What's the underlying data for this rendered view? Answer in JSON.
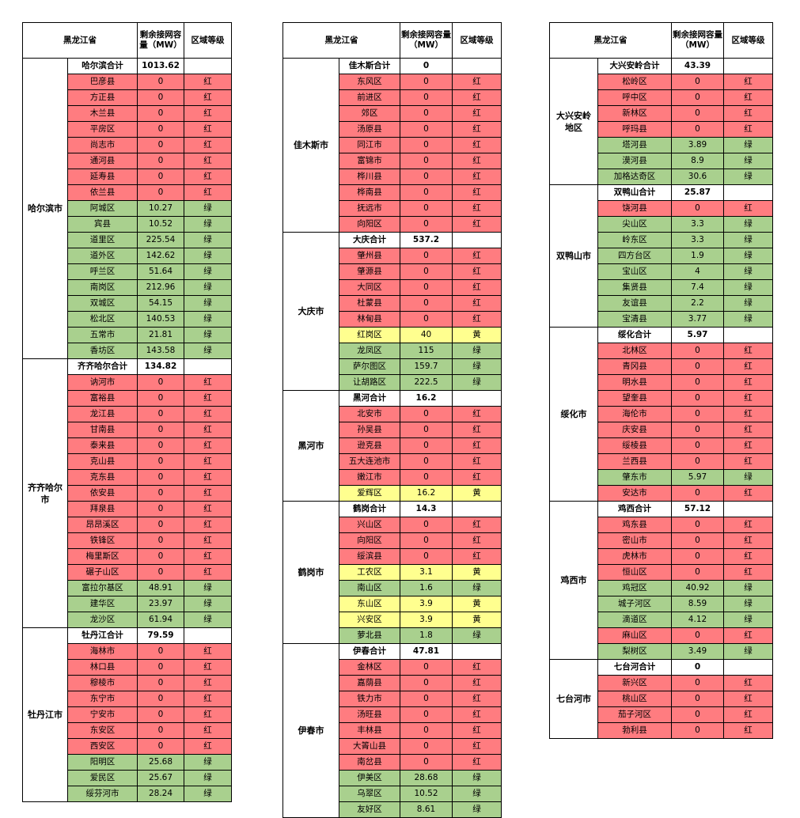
{
  "colors": {
    "red": "#ff7c80",
    "green": "#a9d08e",
    "yellow": "#ffff8f"
  },
  "panels": [
    {
      "header": {
        "province": "黑龙江省",
        "capacity": "剩余接网容量（MW）",
        "grade": "区域等级"
      },
      "groups": [
        {
          "city": "哈尔滨市",
          "total_name": "哈尔滨合计",
          "total_value": "1013.62",
          "rows": [
            [
              "巴彦县",
              "0",
              "红"
            ],
            [
              "方正县",
              "0",
              "红"
            ],
            [
              "木兰县",
              "0",
              "红"
            ],
            [
              "平房区",
              "0",
              "红"
            ],
            [
              "尚志市",
              "0",
              "红"
            ],
            [
              "通河县",
              "0",
              "红"
            ],
            [
              "延寿县",
              "0",
              "红"
            ],
            [
              "依兰县",
              "0",
              "红"
            ],
            [
              "阿城区",
              "10.27",
              "绿"
            ],
            [
              "宾县",
              "10.52",
              "绿"
            ],
            [
              "道里区",
              "225.54",
              "绿"
            ],
            [
              "道外区",
              "142.62",
              "绿"
            ],
            [
              "呼兰区",
              "51.64",
              "绿"
            ],
            [
              "南岗区",
              "212.96",
              "绿"
            ],
            [
              "双城区",
              "54.15",
              "绿"
            ],
            [
              "松北区",
              "140.53",
              "绿"
            ],
            [
              "五常市",
              "21.81",
              "绿"
            ],
            [
              "香坊区",
              "143.58",
              "绿"
            ]
          ]
        },
        {
          "city": "齐齐哈尔市",
          "total_name": "齐齐哈尔合计",
          "total_value": "134.82",
          "rows": [
            [
              "讷河市",
              "0",
              "红"
            ],
            [
              "富裕县",
              "0",
              "红"
            ],
            [
              "龙江县",
              "0",
              "红"
            ],
            [
              "甘南县",
              "0",
              "红"
            ],
            [
              "泰来县",
              "0",
              "红"
            ],
            [
              "克山县",
              "0",
              "红"
            ],
            [
              "克东县",
              "0",
              "红"
            ],
            [
              "依安县",
              "0",
              "红"
            ],
            [
              "拜泉县",
              "0",
              "红"
            ],
            [
              "昂昂溪区",
              "0",
              "红"
            ],
            [
              "铁锋区",
              "0",
              "红"
            ],
            [
              "梅里斯区",
              "0",
              "红"
            ],
            [
              "碾子山区",
              "0",
              "红"
            ],
            [
              "富拉尔基区",
              "48.91",
              "绿"
            ],
            [
              "建华区",
              "23.97",
              "绿"
            ],
            [
              "龙沙区",
              "61.94",
              "绿"
            ]
          ]
        },
        {
          "city": "牡丹江市",
          "total_name": "牡丹江合计",
          "total_value": "79.59",
          "rows": [
            [
              "海林市",
              "0",
              "红"
            ],
            [
              "林口县",
              "0",
              "红"
            ],
            [
              "穆棱市",
              "0",
              "红"
            ],
            [
              "东宁市",
              "0",
              "红"
            ],
            [
              "宁安市",
              "0",
              "红"
            ],
            [
              "东安区",
              "0",
              "红"
            ],
            [
              "西安区",
              "0",
              "红"
            ],
            [
              "阳明区",
              "25.68",
              "绿"
            ],
            [
              "爱民区",
              "25.67",
              "绿"
            ],
            [
              "绥芬河市",
              "28.24",
              "绿"
            ]
          ]
        }
      ]
    },
    {
      "header": {
        "province": "黑龙江省",
        "capacity": "剩余接网容量（MW）",
        "grade": "区域等级"
      },
      "groups": [
        {
          "city": "佳木斯市",
          "total_name": "佳木斯合计",
          "total_value": "0",
          "rows": [
            [
              "东风区",
              "0",
              "红"
            ],
            [
              "前进区",
              "0",
              "红"
            ],
            [
              "郊区",
              "0",
              "红"
            ],
            [
              "汤原县",
              "0",
              "红"
            ],
            [
              "同江市",
              "0",
              "红"
            ],
            [
              "富锦市",
              "0",
              "红"
            ],
            [
              "桦川县",
              "0",
              "红"
            ],
            [
              "桦南县",
              "0",
              "红"
            ],
            [
              "抚远市",
              "0",
              "红"
            ],
            [
              "向阳区",
              "0",
              "红"
            ]
          ]
        },
        {
          "city": "大庆市",
          "total_name": "大庆合计",
          "total_value": "537.2",
          "rows": [
            [
              "肇州县",
              "0",
              "红"
            ],
            [
              "肇源县",
              "0",
              "红"
            ],
            [
              "大同区",
              "0",
              "红"
            ],
            [
              "杜蒙县",
              "0",
              "红"
            ],
            [
              "林甸县",
              "0",
              "红"
            ],
            [
              "红岗区",
              "40",
              "黄"
            ],
            [
              "龙凤区",
              "115",
              "绿"
            ],
            [
              "萨尔图区",
              "159.7",
              "绿"
            ],
            [
              "让胡路区",
              "222.5",
              "绿"
            ]
          ]
        },
        {
          "city": "黑河市",
          "total_name": "黑河合计",
          "total_value": "16.2",
          "rows": [
            [
              "北安市",
              "0",
              "红"
            ],
            [
              "孙吴县",
              "0",
              "红"
            ],
            [
              "逊克县",
              "0",
              "红"
            ],
            [
              "五大连池市",
              "0",
              "红"
            ],
            [
              "嫩江市",
              "0",
              "红"
            ],
            [
              "爱辉区",
              "16.2",
              "黄"
            ]
          ]
        },
        {
          "city": "鹤岗市",
          "total_name": "鹤岗合计",
          "total_value": "14.3",
          "rows": [
            [
              "兴山区",
              "0",
              "红"
            ],
            [
              "向阳区",
              "0",
              "红"
            ],
            [
              "绥滨县",
              "0",
              "红"
            ],
            [
              "工农区",
              "3.1",
              "黄"
            ],
            [
              "南山区",
              "1.6",
              "绿"
            ],
            [
              "东山区",
              "3.9",
              "黄"
            ],
            [
              "兴安区",
              "3.9",
              "黄"
            ],
            [
              "萝北县",
              "1.8",
              "绿"
            ]
          ]
        },
        {
          "city": "伊春市",
          "total_name": "伊春合计",
          "total_value": "47.81",
          "rows": [
            [
              "金林区",
              "0",
              "红"
            ],
            [
              "嘉荫县",
              "0",
              "红"
            ],
            [
              "铁力市",
              "0",
              "红"
            ],
            [
              "汤旺县",
              "0",
              "红"
            ],
            [
              "丰林县",
              "0",
              "红"
            ],
            [
              "大箐山县",
              "0",
              "红"
            ],
            [
              "南岔县",
              "0",
              "红"
            ],
            [
              "伊美区",
              "28.68",
              "绿"
            ],
            [
              "乌翠区",
              "10.52",
              "绿"
            ],
            [
              "友好区",
              "8.61",
              "绿"
            ]
          ]
        }
      ]
    },
    {
      "header": {
        "province": "黑龙江省",
        "capacity": "剩余接网容量（MW）",
        "grade": "区域等级"
      },
      "groups": [
        {
          "city": "大兴安岭地区",
          "total_name": "大兴安岭合计",
          "total_value": "43.39",
          "rows": [
            [
              "松岭区",
              "0",
              "红"
            ],
            [
              "呼中区",
              "0",
              "红"
            ],
            [
              "新林区",
              "0",
              "红"
            ],
            [
              "呼玛县",
              "0",
              "红"
            ],
            [
              "塔河县",
              "3.89",
              "绿"
            ],
            [
              "漠河县",
              "8.9",
              "绿"
            ],
            [
              "加格达奇区",
              "30.6",
              "绿"
            ]
          ]
        },
        {
          "city": "双鸭山市",
          "total_name": "双鸭山合计",
          "total_value": "25.87",
          "rows": [
            [
              "饶河县",
              "0",
              "红"
            ],
            [
              "尖山区",
              "3.3",
              "绿"
            ],
            [
              "岭东区",
              "3.3",
              "绿"
            ],
            [
              "四方台区",
              "1.9",
              "绿"
            ],
            [
              "宝山区",
              "4",
              "绿"
            ],
            [
              "集贤县",
              "7.4",
              "绿"
            ],
            [
              "友谊县",
              "2.2",
              "绿"
            ],
            [
              "宝清县",
              "3.77",
              "绿"
            ]
          ]
        },
        {
          "city": "绥化市",
          "total_name": "绥化合计",
          "total_value": "5.97",
          "rows": [
            [
              "北林区",
              "0",
              "红"
            ],
            [
              "青冈县",
              "0",
              "红"
            ],
            [
              "明水县",
              "0",
              "红"
            ],
            [
              "望奎县",
              "0",
              "红"
            ],
            [
              "海伦市",
              "0",
              "红"
            ],
            [
              "庆安县",
              "0",
              "红"
            ],
            [
              "绥棱县",
              "0",
              "红"
            ],
            [
              "兰西县",
              "0",
              "红"
            ],
            [
              "肇东市",
              "5.97",
              "绿"
            ],
            [
              "安达市",
              "0",
              "红"
            ]
          ]
        },
        {
          "city": "鸡西市",
          "total_name": "鸡西合计",
          "total_value": "57.12",
          "rows": [
            [
              "鸡东县",
              "0",
              "红"
            ],
            [
              "密山市",
              "0",
              "红"
            ],
            [
              "虎林市",
              "0",
              "红"
            ],
            [
              "恒山区",
              "0",
              "红"
            ],
            [
              "鸡冠区",
              "40.92",
              "绿"
            ],
            [
              "城子河区",
              "8.59",
              "绿"
            ],
            [
              "滴道区",
              "4.12",
              "绿"
            ],
            [
              "麻山区",
              "0",
              "红"
            ],
            [
              "梨树区",
              "3.49",
              "绿"
            ]
          ]
        },
        {
          "city": "七台河市",
          "total_name": "七台河合计",
          "total_value": "0",
          "rows": [
            [
              "新兴区",
              "0",
              "红"
            ],
            [
              "桃山区",
              "0",
              "红"
            ],
            [
              "茄子河区",
              "0",
              "红"
            ],
            [
              "勃利县",
              "0",
              "红"
            ]
          ]
        }
      ]
    }
  ]
}
